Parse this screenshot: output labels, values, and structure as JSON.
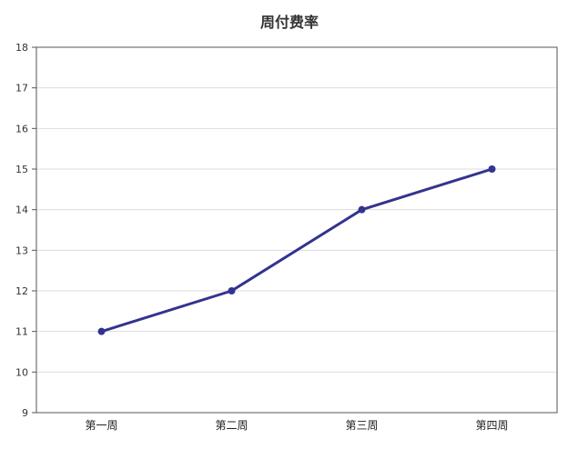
{
  "chart_data": {
    "type": "line",
    "title": "周付费率",
    "xlabel": "",
    "ylabel": "",
    "categories": [
      "第一周",
      "第二周",
      "第三周",
      "第四周"
    ],
    "series": [
      {
        "values": [
          11,
          12,
          14,
          15
        ],
        "color": "#33338f"
      }
    ],
    "ylim": [
      9,
      18
    ],
    "yticks": [
      9,
      10,
      11,
      12,
      13,
      14,
      15,
      16,
      17,
      18
    ],
    "grid": true,
    "legend": "none"
  }
}
